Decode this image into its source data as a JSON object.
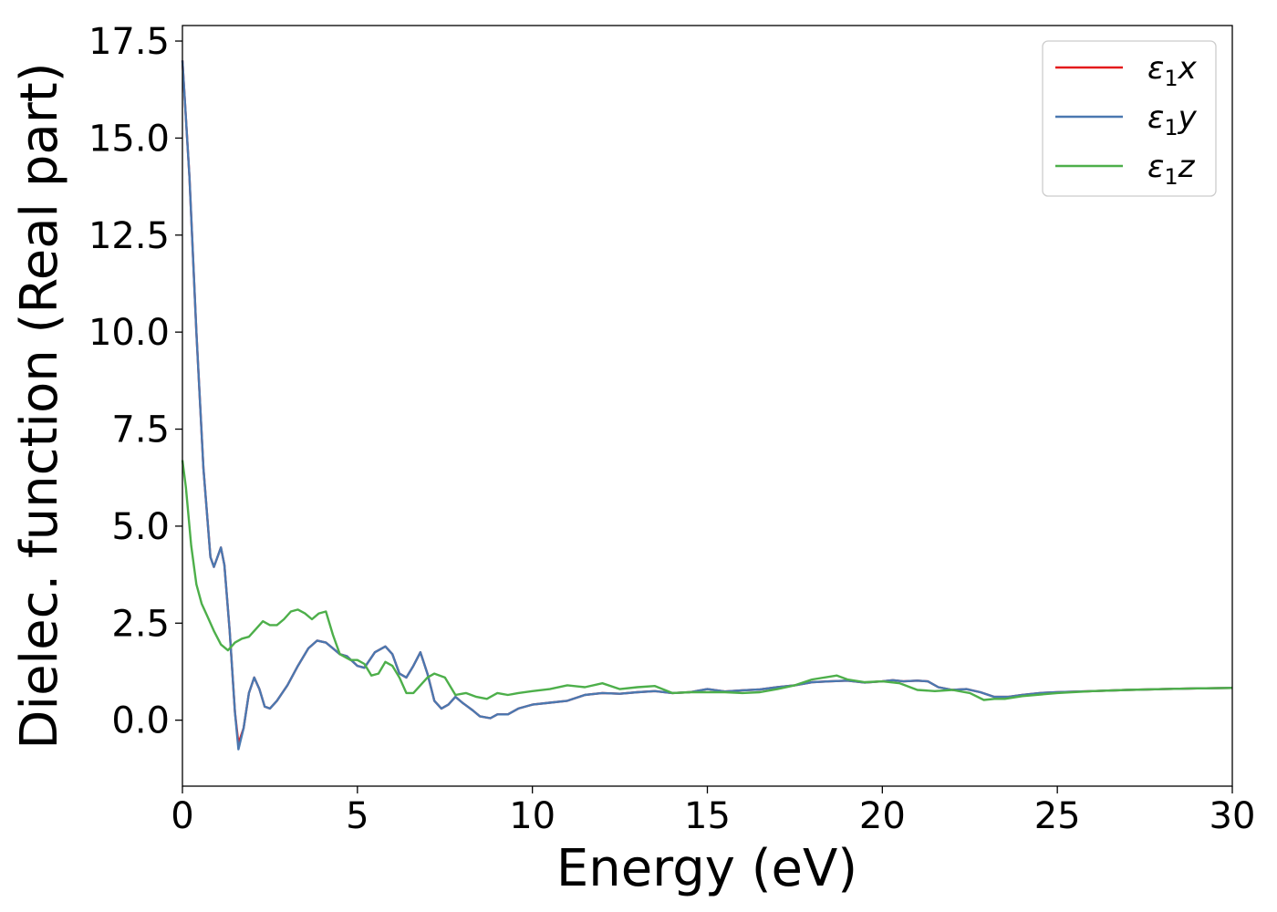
{
  "chart_data": {
    "type": "line",
    "xlabel": "Energy (eV)",
    "ylabel": "Dielec. function (Real part)",
    "xlim": [
      0,
      30
    ],
    "ylim": [
      -1.7,
      17.9
    ],
    "xticks": [
      0,
      5,
      10,
      15,
      20,
      25,
      30
    ],
    "xtick_labels": [
      "0",
      "5",
      "10",
      "15",
      "20",
      "25",
      "30"
    ],
    "yticks": [
      0,
      2.5,
      5,
      7.5,
      10,
      12.5,
      15,
      17.5
    ],
    "ytick_labels": [
      "0.0",
      "2.5",
      "5.0",
      "7.5",
      "10.0",
      "12.5",
      "15.0",
      "17.5"
    ],
    "grid": false,
    "legend_position": "top-right",
    "series": [
      {
        "name": "ε₁x",
        "legend": {
          "base": "ε",
          "sub": "1",
          "var": "x"
        },
        "color": "#e41a1c",
        "x": [
          0,
          0.2,
          0.4,
          0.6,
          0.8,
          0.9,
          1.0,
          1.1,
          1.2,
          1.35,
          1.5,
          1.6,
          1.75,
          1.9,
          2.05,
          2.2,
          2.35,
          2.5,
          2.7,
          3.0,
          3.3,
          3.6,
          3.85,
          4.1,
          4.3,
          4.5,
          4.7,
          5.0,
          5.2,
          5.5,
          5.8,
          6.0,
          6.2,
          6.4,
          6.6,
          6.8,
          7.0,
          7.2,
          7.4,
          7.6,
          7.8,
          8.0,
          8.3,
          8.5,
          8.8,
          9.0,
          9.3,
          9.6,
          10.0,
          10.5,
          11.0,
          11.5,
          12.0,
          12.5,
          13.0,
          13.5,
          14.0,
          14.5,
          15.0,
          15.5,
          16.0,
          16.5,
          17.0,
          17.5,
          18.0,
          18.5,
          19.0,
          19.5,
          20.0,
          20.3,
          20.6,
          21.0,
          21.3,
          21.6,
          22.0,
          22.4,
          22.8,
          23.2,
          23.6,
          24.0,
          24.5,
          25.0,
          26.0,
          27.0,
          28.0,
          29.0,
          30.0
        ],
        "y": [
          17.0,
          14.0,
          10.0,
          6.5,
          4.2,
          3.95,
          4.2,
          4.45,
          4.0,
          2.3,
          0.2,
          -0.6,
          -0.2,
          0.7,
          1.1,
          0.8,
          0.35,
          0.3,
          0.5,
          0.9,
          1.4,
          1.85,
          2.05,
          2.0,
          1.85,
          1.7,
          1.65,
          1.4,
          1.35,
          1.75,
          1.9,
          1.7,
          1.2,
          1.1,
          1.4,
          1.75,
          1.2,
          0.5,
          0.3,
          0.4,
          0.6,
          0.45,
          0.25,
          0.1,
          0.05,
          0.15,
          0.15,
          0.3,
          0.4,
          0.45,
          0.5,
          0.65,
          0.7,
          0.68,
          0.72,
          0.75,
          0.7,
          0.72,
          0.8,
          0.74,
          0.77,
          0.79,
          0.85,
          0.9,
          0.98,
          1.0,
          1.02,
          0.97,
          1.0,
          1.03,
          1.0,
          1.02,
          1.0,
          0.85,
          0.78,
          0.8,
          0.72,
          0.6,
          0.6,
          0.65,
          0.7,
          0.72,
          0.75,
          0.78,
          0.8,
          0.82,
          0.83
        ]
      },
      {
        "name": "ε₁y",
        "legend": {
          "base": "ε",
          "sub": "1",
          "var": "y"
        },
        "color": "#4a78b0",
        "x": [
          0,
          0.2,
          0.4,
          0.6,
          0.8,
          0.9,
          1.0,
          1.1,
          1.2,
          1.35,
          1.5,
          1.6,
          1.75,
          1.9,
          2.05,
          2.2,
          2.35,
          2.5,
          2.7,
          3.0,
          3.3,
          3.6,
          3.85,
          4.1,
          4.3,
          4.5,
          4.7,
          5.0,
          5.2,
          5.5,
          5.8,
          6.0,
          6.2,
          6.4,
          6.6,
          6.8,
          7.0,
          7.2,
          7.4,
          7.6,
          7.8,
          8.0,
          8.3,
          8.5,
          8.8,
          9.0,
          9.3,
          9.6,
          10.0,
          10.5,
          11.0,
          11.5,
          12.0,
          12.5,
          13.0,
          13.5,
          14.0,
          14.5,
          15.0,
          15.5,
          16.0,
          16.5,
          17.0,
          17.5,
          18.0,
          18.5,
          19.0,
          19.5,
          20.0,
          20.3,
          20.6,
          21.0,
          21.3,
          21.6,
          22.0,
          22.4,
          22.8,
          23.2,
          23.6,
          24.0,
          24.5,
          25.0,
          26.0,
          27.0,
          28.0,
          29.0,
          30.0
        ],
        "y": [
          17.0,
          14.0,
          10.0,
          6.5,
          4.2,
          3.95,
          4.2,
          4.45,
          4.0,
          2.3,
          0.2,
          -0.75,
          -0.2,
          0.7,
          1.1,
          0.8,
          0.35,
          0.3,
          0.5,
          0.9,
          1.4,
          1.85,
          2.05,
          2.0,
          1.85,
          1.7,
          1.65,
          1.4,
          1.35,
          1.75,
          1.9,
          1.7,
          1.2,
          1.1,
          1.4,
          1.75,
          1.2,
          0.5,
          0.3,
          0.4,
          0.6,
          0.45,
          0.25,
          0.1,
          0.05,
          0.15,
          0.15,
          0.3,
          0.4,
          0.45,
          0.5,
          0.65,
          0.7,
          0.68,
          0.72,
          0.75,
          0.7,
          0.72,
          0.8,
          0.74,
          0.77,
          0.79,
          0.85,
          0.9,
          0.98,
          1.0,
          1.02,
          0.97,
          1.0,
          1.03,
          1.0,
          1.02,
          1.0,
          0.85,
          0.78,
          0.8,
          0.72,
          0.6,
          0.6,
          0.65,
          0.7,
          0.72,
          0.75,
          0.78,
          0.8,
          0.82,
          0.83
        ]
      },
      {
        "name": "ε₁z",
        "legend": {
          "base": "ε",
          "sub": "1",
          "var": "z"
        },
        "color": "#4daf4a",
        "x": [
          0,
          0.1,
          0.25,
          0.4,
          0.55,
          0.7,
          0.9,
          1.1,
          1.3,
          1.5,
          1.7,
          1.9,
          2.1,
          2.3,
          2.5,
          2.7,
          2.9,
          3.1,
          3.3,
          3.5,
          3.7,
          3.9,
          4.1,
          4.3,
          4.5,
          4.8,
          5.0,
          5.2,
          5.4,
          5.6,
          5.8,
          6.0,
          6.2,
          6.4,
          6.6,
          6.8,
          7.0,
          7.2,
          7.5,
          7.8,
          8.1,
          8.4,
          8.7,
          9.0,
          9.3,
          9.6,
          10.0,
          10.5,
          11.0,
          11.5,
          12.0,
          12.5,
          13.0,
          13.5,
          14.0,
          14.5,
          15.0,
          15.5,
          16.0,
          16.5,
          17.0,
          17.5,
          18.0,
          18.7,
          19.0,
          19.5,
          20.0,
          20.5,
          21.0,
          21.5,
          22.0,
          22.5,
          22.9,
          23.2,
          23.5,
          24.0,
          25.0,
          26.0,
          27.0,
          28.0,
          29.0,
          30.0
        ],
        "y": [
          6.7,
          6.0,
          4.5,
          3.5,
          3.0,
          2.7,
          2.3,
          1.95,
          1.8,
          2.0,
          2.1,
          2.15,
          2.35,
          2.55,
          2.45,
          2.45,
          2.6,
          2.8,
          2.85,
          2.75,
          2.6,
          2.75,
          2.8,
          2.2,
          1.7,
          1.55,
          1.55,
          1.45,
          1.15,
          1.2,
          1.5,
          1.4,
          1.1,
          0.7,
          0.7,
          0.9,
          1.1,
          1.2,
          1.1,
          0.65,
          0.7,
          0.6,
          0.55,
          0.7,
          0.65,
          0.7,
          0.75,
          0.8,
          0.9,
          0.85,
          0.95,
          0.8,
          0.85,
          0.88,
          0.7,
          0.72,
          0.72,
          0.72,
          0.7,
          0.72,
          0.8,
          0.9,
          1.05,
          1.15,
          1.05,
          0.98,
          1.0,
          0.95,
          0.78,
          0.75,
          0.78,
          0.7,
          0.52,
          0.55,
          0.55,
          0.62,
          0.7,
          0.75,
          0.78,
          0.8,
          0.82,
          0.83
        ]
      }
    ]
  }
}
